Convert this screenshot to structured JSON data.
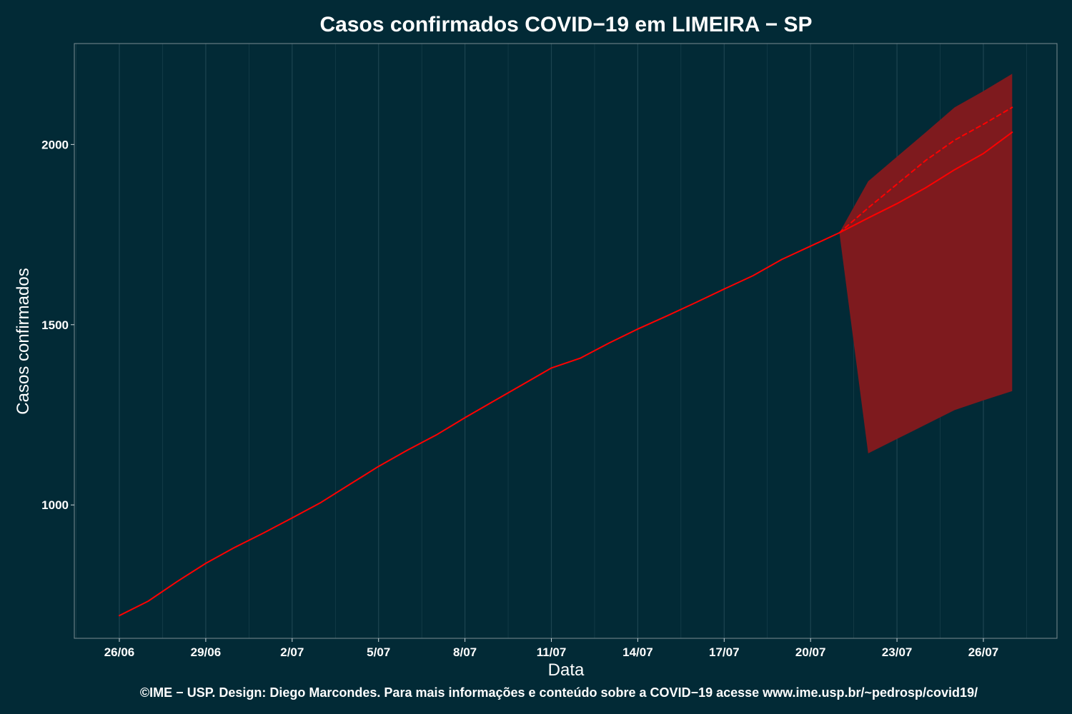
{
  "chart_data": {
    "type": "line",
    "title": "Casos confirmados COVID−19 em LIMEIRA − SP",
    "xlabel": "Data",
    "ylabel": "Casos confirmados",
    "footer": "©IME − USP. Design: Diego Marcondes. Para mais informações e conteúdo sobre a COVID−19 acesse www.ime.usp.br/~pedrosp/covid19/",
    "x_tick_labels": [
      "26/06",
      "29/06",
      "2/07",
      "5/07",
      "8/07",
      "11/07",
      "14/07",
      "17/07",
      "20/07",
      "23/07",
      "26/07"
    ],
    "y_ticks": [
      1000,
      1500,
      2000
    ],
    "ylim": [
      630,
      2280
    ],
    "grid": true,
    "colors": {
      "background": "#022a36",
      "grid": "#1d4450",
      "frame": "#7a8c92",
      "line": "#ff0000",
      "band": "#7e1a1e"
    },
    "series": [
      {
        "kind": "observed",
        "x": [
          "26/06",
          "27/06",
          "28/06",
          "29/06",
          "30/06",
          "1/07",
          "2/07",
          "3/07",
          "4/07",
          "5/07",
          "6/07",
          "7/07",
          "8/07",
          "9/07",
          "10/07",
          "11/07",
          "12/07",
          "13/07",
          "14/07",
          "15/07",
          "16/07",
          "17/07",
          "18/07",
          "19/07",
          "20/07",
          "21/07"
        ],
        "values": [
          693,
          733,
          787,
          838,
          882,
          922,
          964,
          1007,
          1057,
          1107,
          1152,
          1194,
          1242,
          1288,
          1334,
          1380,
          1407,
          1449,
          1488,
          1524,
          1561,
          1599,
          1636,
          1681,
          1718,
          1755
        ]
      },
      {
        "kind": "forecast",
        "x": [
          "21/07",
          "22/07",
          "23/07",
          "24/07",
          "25/07",
          "26/07",
          "27/07"
        ],
        "values": [
          1755,
          1796,
          1836,
          1880,
          1930,
          1975,
          2034
        ]
      },
      {
        "kind": "forecast-dashed",
        "x": [
          "21/07",
          "22/07",
          "23/07",
          "24/07",
          "25/07",
          "26/07",
          "27/07"
        ],
        "values": [
          1755,
          1824,
          1890,
          1956,
          2012,
          2056,
          2103
        ]
      }
    ],
    "band": {
      "x": [
        "21/07",
        "22/07",
        "23/07",
        "24/07",
        "25/07",
        "26/07",
        "27/07"
      ],
      "lower": [
        1755,
        1143,
        1183,
        1223,
        1263,
        1290,
        1316
      ],
      "upper": [
        1755,
        1898,
        1966,
        2034,
        2103,
        2148,
        2196
      ]
    }
  }
}
